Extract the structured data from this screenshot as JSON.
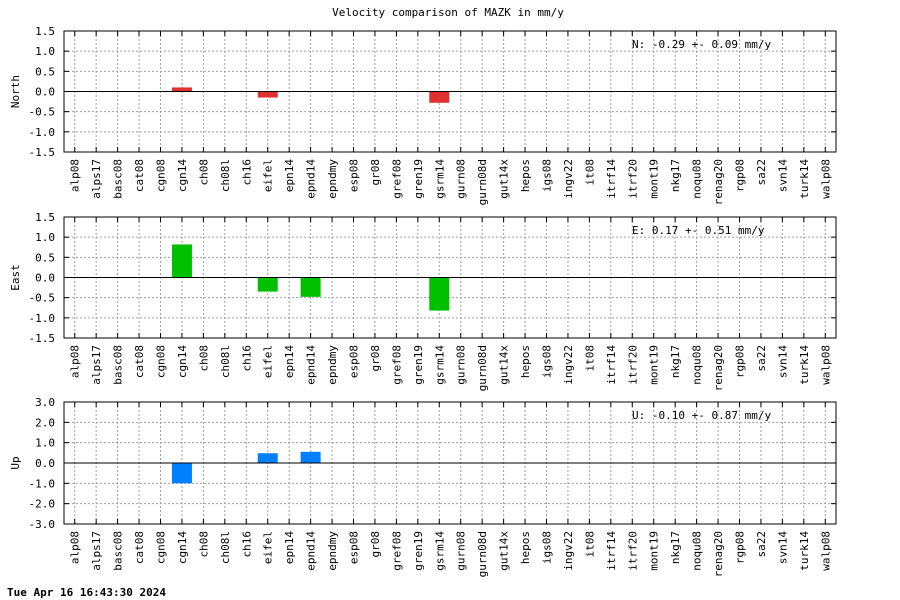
{
  "title": "Velocity comparison of MAZK in mm/y",
  "timestamp": "Tue Apr 16 16:43:30 2024",
  "chart_data": [
    {
      "type": "bar",
      "ylabel": "North",
      "annotation": "N:  -0.29 +-  0.09 mm/y",
      "ylim": [
        -1.5,
        1.5
      ],
      "yticks": [
        1.5,
        1.0,
        0.5,
        0.0,
        -0.5,
        -1.0,
        -1.5
      ],
      "ytick_labels": [
        "1.5",
        "1.0",
        "0.5",
        "0.0",
        "-0.5",
        "-1.0",
        "-1.5"
      ],
      "color": "#e03030",
      "categories": [
        "alp08",
        "alps17",
        "basc08",
        "cat08",
        "cgn08",
        "cgn14",
        "ch08",
        "ch08l",
        "ch16",
        "eifel",
        "epn14",
        "epnd14",
        "epndmy",
        "esp08",
        "gr08",
        "gref08",
        "gren19",
        "gsrm14",
        "gurn08",
        "gurn08d",
        "gut14x",
        "hepos",
        "igs08",
        "ingv22",
        "it08",
        "itrf14",
        "itrf20",
        "mont19",
        "nkg17",
        "noqu08",
        "renag20",
        "rgp08",
        "sa22",
        "svn14",
        "turk14",
        "walp08"
      ],
      "values": [
        null,
        null,
        null,
        null,
        null,
        0.1,
        null,
        null,
        null,
        -0.15,
        null,
        null,
        null,
        null,
        null,
        null,
        null,
        -0.28,
        null,
        null,
        null,
        null,
        null,
        null,
        null,
        null,
        null,
        null,
        null,
        null,
        null,
        null,
        null,
        null,
        null,
        null
      ]
    },
    {
      "type": "bar",
      "ylabel": "East",
      "annotation": "E:   0.17 +-  0.51 mm/y",
      "ylim": [
        -1.5,
        1.5
      ],
      "yticks": [
        1.5,
        1.0,
        0.5,
        0.0,
        -0.5,
        -1.0,
        -1.5
      ],
      "ytick_labels": [
        "1.5",
        "1.0",
        "0.5",
        "0.0",
        "-0.5",
        "-1.0",
        "-1.5"
      ],
      "color": "#00c000",
      "categories": [
        "alp08",
        "alps17",
        "basc08",
        "cat08",
        "cgn08",
        "cgn14",
        "ch08",
        "ch08l",
        "ch16",
        "eifel",
        "epn14",
        "epnd14",
        "epndmy",
        "esp08",
        "gr08",
        "gref08",
        "gren19",
        "gsrm14",
        "gurn08",
        "gurn08d",
        "gut14x",
        "hepos",
        "igs08",
        "ingv22",
        "it08",
        "itrf14",
        "itrf20",
        "mont19",
        "nkg17",
        "noqu08",
        "renag20",
        "rgp08",
        "sa22",
        "svn14",
        "turk14",
        "walp08"
      ],
      "values": [
        null,
        null,
        null,
        null,
        null,
        0.82,
        null,
        null,
        null,
        -0.35,
        null,
        -0.48,
        null,
        null,
        null,
        null,
        null,
        -0.82,
        null,
        null,
        null,
        null,
        null,
        null,
        null,
        null,
        null,
        null,
        null,
        null,
        null,
        null,
        null,
        null,
        null,
        null
      ]
    },
    {
      "type": "bar",
      "ylabel": "Up",
      "annotation": "U:  -0.10 +-  0.87 mm/y",
      "ylim": [
        -3.0,
        3.0
      ],
      "yticks": [
        3.0,
        2.0,
        1.0,
        0.0,
        -1.0,
        -2.0,
        -3.0
      ],
      "ytick_labels": [
        "3.0",
        "2.0",
        "1.0",
        "0.0",
        "-1.0",
        "-2.0",
        "-3.0"
      ],
      "color": "#0080ff",
      "categories": [
        "alp08",
        "alps17",
        "basc08",
        "cat08",
        "cgn08",
        "cgn14",
        "ch08",
        "ch08l",
        "ch16",
        "eifel",
        "epn14",
        "epnd14",
        "epndmy",
        "esp08",
        "gr08",
        "gref08",
        "gren19",
        "gsrm14",
        "gurn08",
        "gurn08d",
        "gut14x",
        "hepos",
        "igs08",
        "ingv22",
        "it08",
        "itrf14",
        "itrf20",
        "mont19",
        "nkg17",
        "noqu08",
        "renag20",
        "rgp08",
        "sa22",
        "svn14",
        "turk14",
        "walp08"
      ],
      "values": [
        null,
        null,
        null,
        null,
        null,
        -1.0,
        null,
        null,
        null,
        0.48,
        null,
        0.55,
        null,
        null,
        null,
        null,
        null,
        null,
        null,
        null,
        null,
        null,
        null,
        null,
        null,
        null,
        null,
        null,
        null,
        null,
        null,
        null,
        null,
        null,
        null,
        null
      ]
    }
  ]
}
